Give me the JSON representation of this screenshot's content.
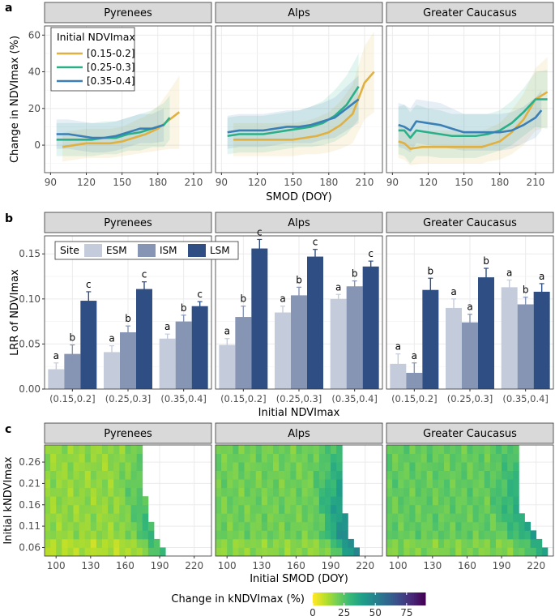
{
  "colors": {
    "strip_bg": "#d9d9d9",
    "grid": "#ebebeb",
    "lines": [
      "#e0b040",
      "#2ab089",
      "#3b7fb7"
    ],
    "bars": [
      "#c4ccdc",
      "#8795b4",
      "#2f4f84"
    ]
  },
  "chart_data": [
    {
      "panel_label": "a",
      "type": "line",
      "facets": [
        "Pyrenees",
        "Alps",
        "Greater Caucasus"
      ],
      "xlabel": "SMOD (DOY)",
      "ylabel": "Change in NDVImax (%)",
      "xticks": [
        90,
        120,
        150,
        180,
        210
      ],
      "xtick_labels": [
        "90",
        "120",
        "150",
        "180",
        "210"
      ],
      "yticks": [
        0,
        20,
        40,
        60
      ],
      "ytick_labels": [
        "0",
        "20",
        "40",
        "60"
      ],
      "xlim": [
        85,
        225
      ],
      "ylim": [
        -15,
        65
      ],
      "legend_title": "Initial NDVImax",
      "legend_labels": [
        "[0.15-0.2]",
        "[0.25-0.3]",
        "[0.35-0.4]"
      ],
      "facet_data": [
        {
          "name": "Pyrenees",
          "series": [
            {
              "name": "[0.15-0.2]",
              "x": [
                100,
                110,
                120,
                130,
                140,
                150,
                160,
                170,
                180,
                190,
                198
              ],
              "y": [
                -1,
                0,
                1,
                1,
                1,
                2,
                4,
                6,
                9,
                14,
                18
              ],
              "band": [
                8,
                8,
                8,
                8,
                8,
                8,
                9,
                10,
                12,
                16,
                20
              ]
            },
            {
              "name": "[0.25-0.3]",
              "x": [
                95,
                105,
                115,
                125,
                135,
                145,
                155,
                165,
                175,
                185,
                190
              ],
              "y": [
                3,
                3,
                3,
                3,
                4,
                4,
                6,
                7,
                9,
                11,
                15
              ],
              "band": [
                9,
                9,
                9,
                9,
                9,
                9,
                9,
                10,
                10,
                12,
                12
              ]
            },
            {
              "name": "[0.35-0.4]",
              "x": [
                95,
                105,
                115,
                125,
                135,
                145,
                155,
                165,
                175,
                185
              ],
              "y": [
                6,
                6,
                5,
                4,
                4,
                5,
                7,
                9,
                9,
                11
              ],
              "band": [
                8,
                8,
                8,
                8,
                8,
                8,
                8,
                8,
                8,
                9
              ]
            }
          ]
        },
        {
          "name": "Alps",
          "series": [
            {
              "name": "[0.15-0.2]",
              "x": [
                100,
                110,
                120,
                130,
                140,
                150,
                160,
                170,
                180,
                190,
                200,
                210,
                218
              ],
              "y": [
                3,
                3,
                3,
                3,
                3,
                3,
                4,
                5,
                7,
                11,
                17,
                34,
                40
              ],
              "band": [
                9,
                9,
                9,
                9,
                9,
                9,
                9,
                10,
                11,
                13,
                16,
                20,
                22
              ]
            },
            {
              "name": "[0.25-0.3]",
              "x": [
                95,
                105,
                115,
                125,
                135,
                145,
                155,
                165,
                175,
                185,
                195,
                205
              ],
              "y": [
                5,
                6,
                6,
                6,
                7,
                8,
                9,
                10,
                12,
                16,
                22,
                32
              ],
              "band": [
                10,
                10,
                10,
                10,
                10,
                10,
                10,
                11,
                12,
                14,
                16,
                18
              ]
            },
            {
              "name": "[0.35-0.4]",
              "x": [
                95,
                105,
                115,
                125,
                135,
                145,
                155,
                165,
                175,
                185,
                195,
                205
              ],
              "y": [
                7,
                8,
                8,
                8,
                9,
                10,
                10,
                11,
                13,
                15,
                20,
                25
              ],
              "band": [
                9,
                9,
                9,
                9,
                9,
                9,
                9,
                10,
                10,
                11,
                12,
                13
              ]
            }
          ]
        },
        {
          "name": "Greater Caucasus",
          "series": [
            {
              "name": "[0.15-0.2]",
              "x": [
                95,
                100,
                105,
                115,
                125,
                135,
                145,
                155,
                165,
                170,
                180,
                190,
                200,
                210,
                220
              ],
              "y": [
                2,
                1,
                -2,
                -1,
                -1,
                -1,
                -1,
                -1,
                -1,
                0,
                2,
                7,
                14,
                25,
                29
              ],
              "band": [
                9,
                9,
                9,
                9,
                9,
                9,
                9,
                9,
                9,
                9,
                10,
                12,
                14,
                17,
                19
              ]
            },
            {
              "name": "[0.25-0.3]",
              "x": [
                95,
                100,
                105,
                110,
                120,
                130,
                140,
                150,
                160,
                170,
                180,
                190,
                200,
                210,
                220
              ],
              "y": [
                8,
                8,
                4,
                8,
                7,
                6,
                5,
                5,
                5,
                6,
                8,
                12,
                18,
                25,
                25
              ],
              "band": [
                13,
                14,
                14,
                14,
                13,
                13,
                12,
                12,
                12,
                11,
                11,
                12,
                13,
                15,
                16
              ]
            },
            {
              "name": "[0.35-0.4]",
              "x": [
                95,
                100,
                105,
                110,
                120,
                130,
                140,
                150,
                160,
                170,
                180,
                190,
                200,
                210,
                215
              ],
              "y": [
                11,
                10,
                8,
                13,
                12,
                11,
                9,
                7,
                7,
                7,
                7,
                8,
                11,
                15,
                19
              ],
              "band": [
                12,
                12,
                12,
                12,
                12,
                12,
                11,
                10,
                10,
                10,
                10,
                10,
                10,
                11,
                11
              ]
            }
          ]
        }
      ]
    },
    {
      "panel_label": "b",
      "type": "bar",
      "facets": [
        "Pyrenees",
        "Alps",
        "Greater Caucasus"
      ],
      "xlabel": "Initial NDVImax",
      "ylabel": "LRR of NDVImax",
      "categories": [
        "(0.15,0.2]",
        "(0.25,0.3]",
        "(0.35,0.4]"
      ],
      "yticks": [
        0.0,
        0.05,
        0.1,
        0.15
      ],
      "ytick_labels": [
        "0.00",
        "0.05",
        "0.10",
        "0.15"
      ],
      "ylim": [
        0,
        0.17
      ],
      "legend_title": "Site",
      "legend_labels": [
        "ESM",
        "ISM",
        "LSM"
      ],
      "facet_data": [
        {
          "name": "Pyrenees",
          "series": [
            {
              "name": "ESM",
              "values": [
                0.022,
                0.041,
                0.056
              ],
              "errors": [
                0.007,
                0.007,
                0.005
              ],
              "letters": [
                "a",
                "a",
                "a"
              ]
            },
            {
              "name": "ISM",
              "values": [
                0.039,
                0.063,
                0.075
              ],
              "errors": [
                0.01,
                0.007,
                0.007
              ],
              "letters": [
                "b",
                "b",
                "b"
              ]
            },
            {
              "name": "LSM",
              "values": [
                0.098,
                0.111,
                0.092
              ],
              "errors": [
                0.01,
                0.008,
                0.005
              ],
              "letters": [
                "c",
                "c",
                "c"
              ]
            }
          ]
        },
        {
          "name": "Alps",
          "series": [
            {
              "name": "ESM",
              "values": [
                0.049,
                0.085,
                0.1
              ],
              "errors": [
                0.007,
                0.007,
                0.005
              ],
              "letters": [
                "a",
                "a",
                "a"
              ]
            },
            {
              "name": "ISM",
              "values": [
                0.08,
                0.104,
                0.114
              ],
              "errors": [
                0.012,
                0.009,
                0.006
              ],
              "letters": [
                "b",
                "b",
                "b"
              ]
            },
            {
              "name": "LSM",
              "values": [
                0.156,
                0.147,
                0.136
              ],
              "errors": [
                0.01,
                0.008,
                0.006
              ],
              "letters": [
                "c",
                "c",
                "c"
              ]
            }
          ]
        },
        {
          "name": "Greater Caucasus",
          "series": [
            {
              "name": "ESM",
              "values": [
                0.028,
                0.09,
                0.113
              ],
              "errors": [
                0.011,
                0.01,
                0.008
              ],
              "letters": [
                "a",
                "a",
                "a"
              ]
            },
            {
              "name": "ISM",
              "values": [
                0.018,
                0.074,
                0.094
              ],
              "errors": [
                0.011,
                0.009,
                0.008
              ],
              "letters": [
                "a",
                "a",
                "b"
              ]
            },
            {
              "name": "LSM",
              "values": [
                0.11,
                0.124,
                0.108
              ],
              "errors": [
                0.013,
                0.01,
                0.009
              ],
              "letters": [
                "b",
                "b",
                "a"
              ]
            }
          ]
        }
      ]
    },
    {
      "panel_label": "c",
      "type": "heatmap",
      "facets": [
        "Pyrenees",
        "Alps",
        "Greater Caucasus"
      ],
      "xlabel": "Initial SMOD (DOY)",
      "ylabel": "Initial kNDVImax",
      "xticks": [
        100,
        130,
        160,
        190,
        220
      ],
      "xtick_labels": [
        "100",
        "130",
        "160",
        "190",
        "220"
      ],
      "yticks": [
        0.06,
        0.11,
        0.16,
        0.21,
        0.26
      ],
      "ytick_labels": [
        "0.06",
        "0.11",
        "0.16",
        "0.21",
        "0.26"
      ],
      "xlim": [
        90,
        235
      ],
      "ylim": [
        0.04,
        0.3
      ],
      "colorbar_title": "Change in kNDVImax (%)",
      "colorbar_ticks": [
        0,
        25,
        50,
        75
      ],
      "colorbar_tick_labels": [
        "0",
        "25",
        "50",
        "75"
      ],
      "colorbar_range": [
        0,
        90
      ],
      "facet_data": [
        {
          "name": "Pyrenees",
          "x_start": 90,
          "x_step": 5,
          "y_start": 0.04,
          "y_step": 0.02,
          "row_max_x": [
            195,
            190,
            185,
            185,
            180,
            180,
            180,
            175,
            175,
            175,
            175,
            175,
            175
          ],
          "base": 15,
          "gradient": 0.9
        },
        {
          "name": "Alps",
          "x_start": 90,
          "x_step": 5,
          "y_start": 0.04,
          "y_step": 0.02,
          "row_max_x": [
            215,
            210,
            205,
            205,
            205,
            200,
            200,
            200,
            200,
            200,
            200,
            200,
            200
          ],
          "base": 20,
          "gradient": 1.6
        },
        {
          "name": "Greater Caucasus",
          "x_start": 90,
          "x_step": 5,
          "y_start": 0.04,
          "y_step": 0.02,
          "row_max_x": [
            230,
            225,
            220,
            215,
            210,
            205,
            205,
            205,
            205,
            205,
            205,
            205,
            205
          ],
          "base": 22,
          "gradient": 0.9
        }
      ]
    }
  ]
}
